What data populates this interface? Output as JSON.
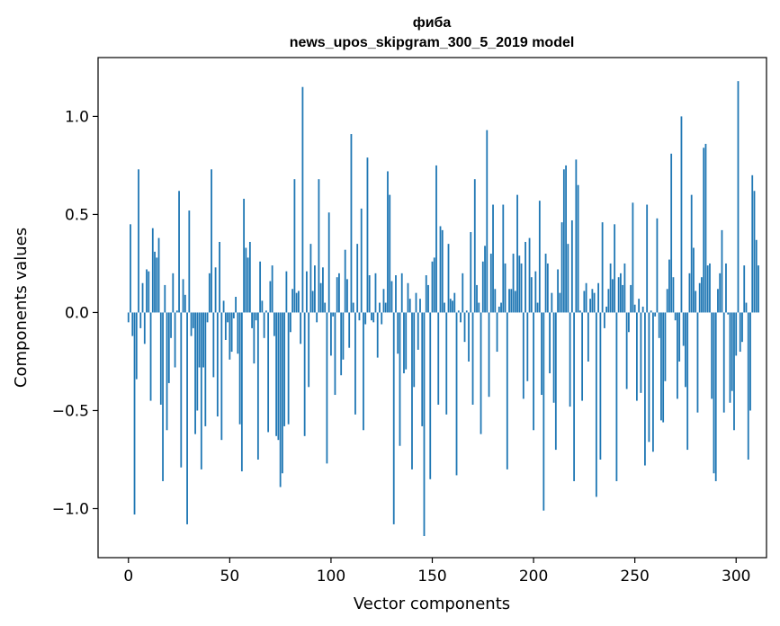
{
  "chart_data": {
    "type": "bar",
    "title": "фиба",
    "subtitle": "news_upos_skipgram_300_5_2019 model",
    "xlabel": "Vector components",
    "ylabel": "Components values",
    "xlim": [
      -15,
      315
    ],
    "ylim": [
      -1.25,
      1.3
    ],
    "xticks": [
      0,
      50,
      100,
      150,
      200,
      250,
      300
    ],
    "xtick_labels": [
      "0",
      "50",
      "100",
      "150",
      "200",
      "250",
      "300"
    ],
    "yticks": [
      -1.0,
      -0.5,
      0.0,
      0.5,
      1.0
    ],
    "ytick_labels": [
      "−1.0",
      "−0.5",
      "0.0",
      "0.5",
      "1.0"
    ],
    "grid": false,
    "bar_color": "#1f77b4",
    "values": [
      -0.05,
      0.45,
      -0.12,
      -1.03,
      -0.34,
      0.73,
      -0.08,
      0.15,
      -0.16,
      0.22,
      0.21,
      -0.45,
      0.43,
      0.31,
      0.28,
      0.38,
      -0.47,
      -0.86,
      0.14,
      -0.6,
      -0.36,
      -0.13,
      0.2,
      -0.28,
      0.01,
      0.62,
      -0.79,
      0.17,
      0.09,
      -1.08,
      0.52,
      -0.12,
      -0.08,
      -0.62,
      -0.5,
      -0.28,
      -0.8,
      -0.28,
      -0.58,
      -0.05,
      0.2,
      0.73,
      -0.33,
      0.23,
      -0.53,
      0.36,
      -0.65,
      0.06,
      -0.14,
      -0.05,
      -0.24,
      -0.2,
      -0.03,
      0.08,
      -0.21,
      -0.57,
      -0.81,
      0.58,
      0.33,
      0.28,
      0.36,
      -0.08,
      -0.26,
      -0.04,
      -0.75,
      0.26,
      0.06,
      -0.13,
      0.01,
      -0.61,
      0.16,
      0.24,
      -0.12,
      -0.63,
      -0.65,
      -0.89,
      -0.82,
      -0.58,
      0.21,
      -0.57,
      -0.1,
      0.12,
      0.68,
      0.1,
      0.11,
      -0.16,
      1.15,
      -0.63,
      0.21,
      -0.38,
      0.35,
      0.11,
      0.24,
      -0.05,
      0.68,
      0.15,
      0.23,
      0.05,
      -0.77,
      0.51,
      -0.22,
      -0.02,
      -0.42,
      0.18,
      0.2,
      -0.32,
      -0.24,
      0.32,
      0.17,
      -0.18,
      0.91,
      0.05,
      -0.52,
      0.35,
      -0.04,
      0.53,
      -0.6,
      -0.06,
      0.79,
      0.19,
      -0.04,
      -0.05,
      0.2,
      -0.23,
      0.05,
      -0.06,
      0.12,
      0.05,
      0.72,
      0.6,
      0.16,
      -1.08,
      0.19,
      -0.21,
      -0.68,
      0.2,
      -0.31,
      -0.29,
      0.15,
      0.07,
      -0.8,
      -0.38,
      0.1,
      -0.19,
      0.07,
      -0.58,
      -1.14,
      0.19,
      0.14,
      -0.85,
      0.26,
      0.28,
      0.75,
      -0.47,
      0.44,
      0.42,
      0.05,
      -0.52,
      0.35,
      0.07,
      0.06,
      0.1,
      -0.83,
      0.01,
      -0.05,
      0.2,
      -0.15,
      0.01,
      -0.25,
      0.41,
      -0.47,
      0.68,
      0.14,
      0.05,
      -0.62,
      0.26,
      0.34,
      0.93,
      -0.43,
      0.3,
      0.55,
      0.12,
      -0.2,
      0.03,
      0.05,
      0.55,
      0.25,
      -0.8,
      0.12,
      0.12,
      0.3,
      0.11,
      0.6,
      0.29,
      0.25,
      -0.44,
      0.36,
      -0.35,
      0.38,
      0.18,
      -0.6,
      0.21,
      0.05,
      0.57,
      -0.42,
      -1.01,
      0.3,
      0.25,
      -0.31,
      0.1,
      -0.46,
      -0.7,
      0.22,
      0.1,
      0.46,
      0.73,
      0.75,
      0.35,
      -0.48,
      0.47,
      -0.86,
      0.78,
      0.65,
      0.01,
      -0.45,
      0.11,
      0.15,
      -0.25,
      0.07,
      0.12,
      0.1,
      -0.94,
      0.15,
      -0.75,
      0.46,
      -0.08,
      0.03,
      0.12,
      0.25,
      0.17,
      0.45,
      -0.86,
      0.18,
      0.2,
      0.14,
      0.25,
      -0.39,
      -0.1,
      0.14,
      0.56,
      0.04,
      -0.45,
      0.07,
      -0.41,
      0.03,
      -0.78,
      0.55,
      -0.66,
      0.01,
      -0.71,
      -0.02,
      0.48,
      -0.13,
      -0.55,
      -0.56,
      -0.35,
      0.12,
      0.27,
      0.81,
      0.18,
      -0.04,
      -0.44,
      -0.25,
      1.0,
      -0.17,
      -0.38,
      -0.7,
      0.2,
      0.6,
      0.33,
      0.11,
      -0.51,
      0.15,
      0.18,
      0.84,
      0.86,
      0.24,
      0.25,
      -0.44,
      -0.82,
      -0.86,
      0.12,
      0.2,
      0.42,
      -0.51,
      0.25,
      -0.01,
      -0.46,
      -0.4,
      -0.6,
      -0.22,
      1.18,
      -0.2,
      -0.15,
      0.24,
      0.05,
      -0.75,
      -0.5,
      0.7,
      0.62,
      0.37,
      0.24
    ]
  }
}
